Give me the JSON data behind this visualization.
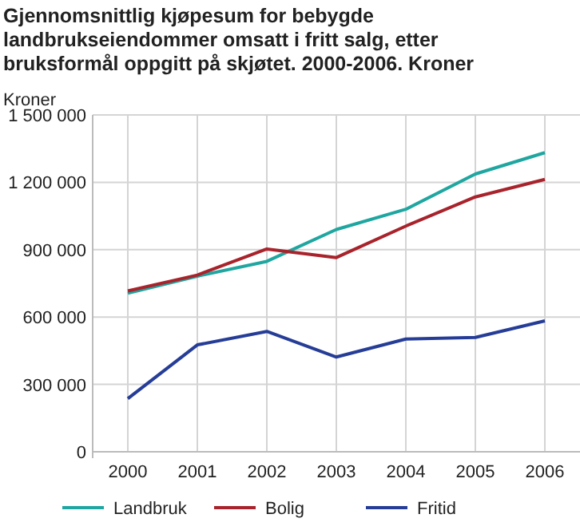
{
  "chart_data": {
    "type": "line",
    "title": "Gjennomsnittlig kjøpesum for bebygde landbrukseiendommer omsatt i fritt salg, etter bruksformål oppgitt på skjøtet. 2000-2006. Kroner",
    "ylabel": "Kroner",
    "categories": [
      "2000",
      "2001",
      "2002",
      "2003",
      "2004",
      "2005",
      "2006"
    ],
    "series": [
      {
        "name": "Landbruk",
        "color": "#1fa6a0",
        "values": [
          706000,
          782000,
          848000,
          990000,
          1080000,
          1237000,
          1332000
        ]
      },
      {
        "name": "Bolig",
        "color": "#a8232b",
        "values": [
          716000,
          787000,
          903000,
          865000,
          1005000,
          1135000,
          1213000
        ]
      },
      {
        "name": "Fritid",
        "color": "#263d97",
        "values": [
          237000,
          476000,
          536000,
          422000,
          502000,
          509000,
          583000
        ]
      }
    ],
    "ylim": [
      0,
      1500000
    ],
    "yticks": [
      {
        "value": 0,
        "label": "0"
      },
      {
        "value": 300000,
        "label": "300 000"
      },
      {
        "value": 600000,
        "label": "600 000"
      },
      {
        "value": 900000,
        "label": "900 000"
      },
      {
        "value": 1200000,
        "label": "1 200 000"
      },
      {
        "value": 1500000,
        "label": "1 500 000"
      }
    ],
    "grid": true,
    "legend": "bottom",
    "line_style": "solid"
  }
}
